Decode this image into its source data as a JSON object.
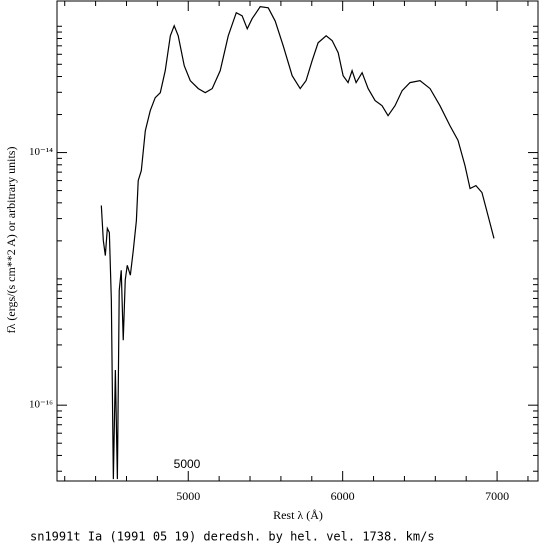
{
  "chart_data": {
    "type": "line",
    "x_label": "Rest λ (Å)",
    "y_label": "fλ (ergs/(s cm**2 A) or arbitrary units)",
    "caption": "sn1991t Ia (1991 05 19) deredsh. by hel. vel.  1738. km/s",
    "annotation": "5000",
    "log_y": true,
    "color": "#000000",
    "x": [
      4437,
      4450,
      4463,
      4476,
      4489,
      4502,
      4515,
      4528,
      4541,
      4553,
      4566,
      4579,
      4592,
      4605,
      4625,
      4644,
      4664,
      4676,
      4696,
      4722,
      4754,
      4786,
      4819,
      4851,
      4884,
      4909,
      4935,
      4974,
      5013,
      5065,
      5110,
      5155,
      5207,
      5259,
      5311,
      5349,
      5382,
      5414,
      5466,
      5518,
      5563,
      5615,
      5673,
      5725,
      5763,
      5802,
      5841,
      5893,
      5932,
      5971,
      6003,
      6035,
      6061,
      6087,
      6126,
      6165,
      6210,
      6255,
      6294,
      6339,
      6385,
      6436,
      6501,
      6566,
      6630,
      6695,
      6747,
      6792,
      6825,
      6863,
      6902,
      6941,
      6980
    ],
    "values": [
      3.81e-15,
      2.01e-15,
      1.53e-15,
      2.51e-15,
      2.33e-15,
      6.76e-16,
      2.6e-17,
      1.9e-16,
      2.6e-17,
      8.1e-16,
      1.17e-15,
      3.27e-16,
      9.8e-16,
      1.28e-15,
      1.07e-15,
      1.68e-15,
      2.88e-15,
      6e-15,
      7.2e-15,
      1.49e-14,
      2.15e-14,
      2.72e-14,
      2.98e-14,
      4.45e-14,
      8.4e-14,
      1.01e-13,
      8.4e-14,
      4.87e-14,
      3.71e-14,
      3.21e-14,
      2.98e-14,
      3.21e-14,
      4.45e-14,
      8.4e-14,
      1.28e-13,
      1.21e-13,
      9.55e-14,
      1.15e-13,
      1.43e-13,
      1.4e-13,
      1.1e-13,
      7e-14,
      4.06e-14,
      3.21e-14,
      3.71e-14,
      5.33e-14,
      7.4e-14,
      8.4e-14,
      7.7e-14,
      6.17e-14,
      4.06e-14,
      3.58e-14,
      4.45e-14,
      3.58e-14,
      4.29e-14,
      3.21e-14,
      2.58e-14,
      2.35e-14,
      1.96e-14,
      2.35e-14,
      3.09e-14,
      3.58e-14,
      3.71e-14,
      3.21e-14,
      2.35e-14,
      1.63e-14,
      1.25e-14,
      7.9e-15,
      5.19e-15,
      5.48e-15,
      4.83e-15,
      3.18e-15,
      2.09e-15
    ],
    "xlim": [
      4150,
      7265
    ],
    "ylim": [
      2.51e-17,
      1.585e-13
    ],
    "xticks": [
      5000,
      6000,
      7000
    ],
    "xminorticks": [
      4200,
      4400,
      4600,
      4800,
      5200,
      5400,
      5600,
      5800,
      6200,
      6400,
      6600,
      6800,
      7200
    ],
    "yticks": [
      {
        "value": 1e-14,
        "label": "10⁻¹⁴"
      },
      {
        "value": 1e-16,
        "label": "10⁻¹⁶"
      }
    ],
    "yminorticks": [
      3e-17,
      4e-17,
      5e-17,
      6e-17,
      7e-17,
      8e-17,
      9e-17,
      2e-16,
      3e-16,
      4e-16,
      5e-16,
      6e-16,
      7e-16,
      8e-16,
      9e-16,
      1e-15,
      2e-15,
      3e-15,
      4e-15,
      5e-15,
      6e-15,
      7e-15,
      8e-15,
      9e-15,
      2e-14,
      3e-14,
      4e-14,
      5e-14,
      6e-14,
      7e-14,
      8e-14,
      9e-14,
      1e-13
    ]
  }
}
